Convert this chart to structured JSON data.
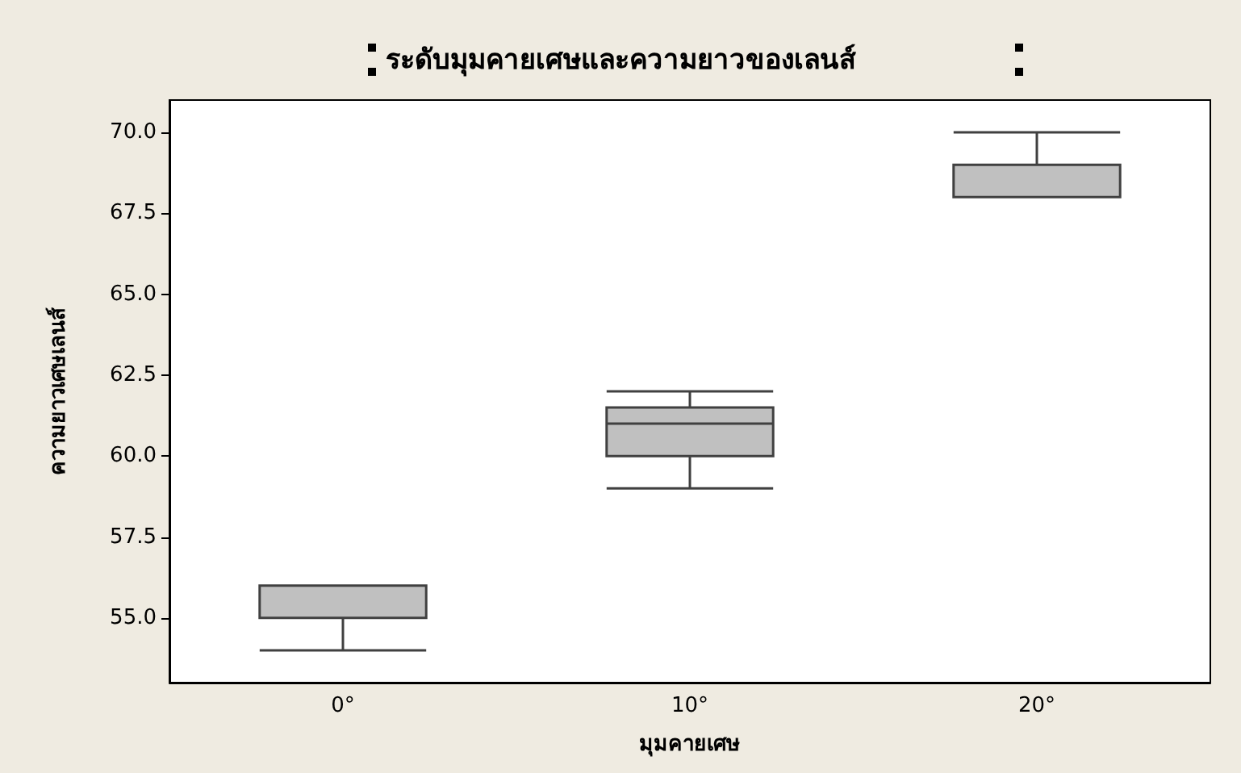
{
  "chart_data": {
    "type": "box",
    "title": "ระดับมุมคายเศษและความยาวของเลนส์",
    "xlabel": "มุมคายเศษ",
    "ylabel": "ความยาวเศษเลนส์",
    "categories": [
      "0°",
      "10°",
      "20°"
    ],
    "boxes": [
      {
        "low": 54,
        "q1": 55,
        "median": 55,
        "q3": 56,
        "high": 56
      },
      {
        "low": 59,
        "q1": 60,
        "median": 61,
        "q3": 61.5,
        "high": 62
      },
      {
        "low": 68,
        "q1": 68,
        "median": 68,
        "q3": 69,
        "high": 70
      }
    ],
    "color": "#c0c0c0",
    "ylim": [
      53,
      71
    ],
    "yticks": [
      {
        "value": 55,
        "label": "55.0"
      },
      {
        "value": 57.5,
        "label": "57.5"
      },
      {
        "value": 60,
        "label": "60.0"
      },
      {
        "value": 62.5,
        "label": "62.5"
      },
      {
        "value": 65,
        "label": "65.0"
      },
      {
        "value": 67.5,
        "label": "67.5"
      },
      {
        "value": 70,
        "label": "70.0"
      }
    ],
    "grid": false
  }
}
